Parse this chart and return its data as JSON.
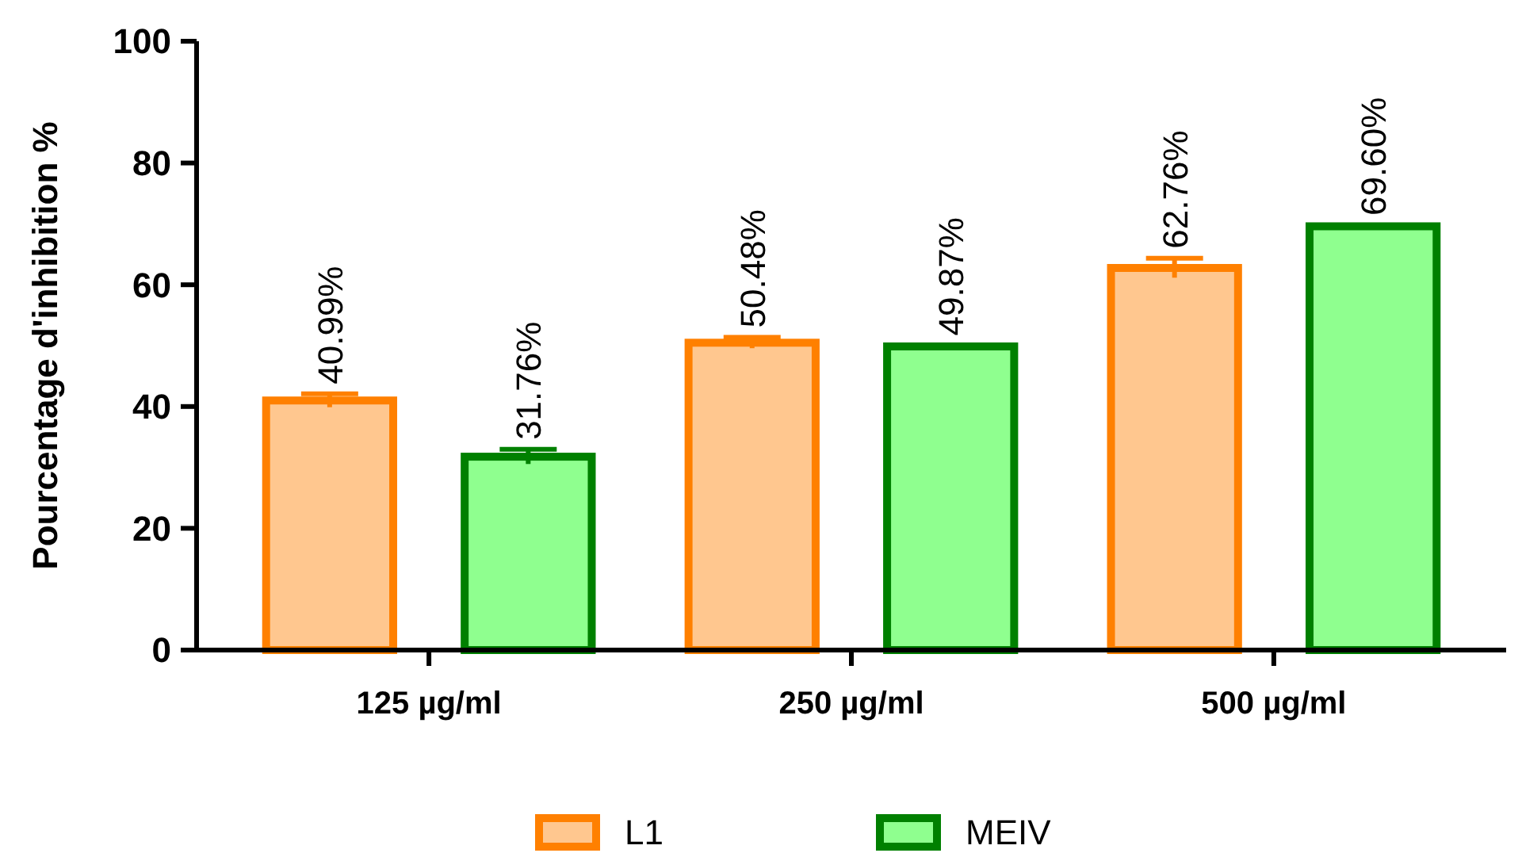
{
  "chart_data": {
    "type": "bar",
    "ylabel": "Pourcentage d'inhibition %",
    "categories": [
      "125 µg/ml",
      "250 µg/ml",
      "500 µg/ml"
    ],
    "series": [
      {
        "name": "L1",
        "color": "#ff8000",
        "values": [
          40.99,
          50.48,
          62.76
        ],
        "errors": [
          1.1,
          0.9,
          1.6
        ],
        "value_labels": [
          "40.99%",
          "50.48%",
          "62.76%"
        ]
      },
      {
        "name": "MEIV",
        "color": "#008000",
        "values": [
          31.76,
          49.87,
          69.6
        ],
        "errors": [
          1.2,
          0.2,
          0.2
        ],
        "value_labels": [
          "31.76%",
          "49.87%",
          "69.60%"
        ]
      }
    ],
    "ylim": [
      0,
      100
    ],
    "yticks": [
      0,
      20,
      40,
      60,
      80,
      100
    ],
    "legend": "bottom"
  }
}
